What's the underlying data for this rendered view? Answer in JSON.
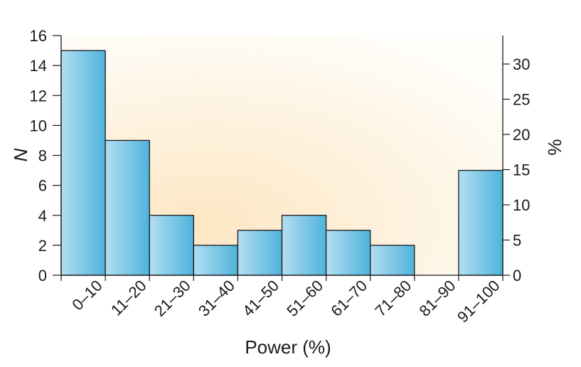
{
  "chart_data": {
    "type": "bar",
    "xlabel": "Power (%)",
    "ylabel": "N",
    "ylabel_right": "%",
    "categories": [
      "0–10",
      "11–20",
      "21–30",
      "31–40",
      "41–50",
      "51–60",
      "61–70",
      "71–80",
      "81–90",
      "91–100"
    ],
    "values": [
      15,
      9,
      4,
      2,
      3,
      4,
      3,
      2,
      0,
      7
    ],
    "ylim": [
      0,
      16
    ],
    "yticks": [
      0,
      2,
      4,
      6,
      8,
      10,
      12,
      14,
      16
    ],
    "ylim_right": [
      0,
      34.04
    ],
    "yticks_right": [
      0,
      5,
      10,
      15,
      20,
      25,
      30
    ],
    "grid": false,
    "legend": "none",
    "colors": {
      "bar_dark": "#4fb3dc",
      "bar_light": "#b3def2",
      "bar_edge": "#1a1a1a",
      "bg_warm": "#fde7c4",
      "bg_light": "#fffdf9"
    }
  }
}
